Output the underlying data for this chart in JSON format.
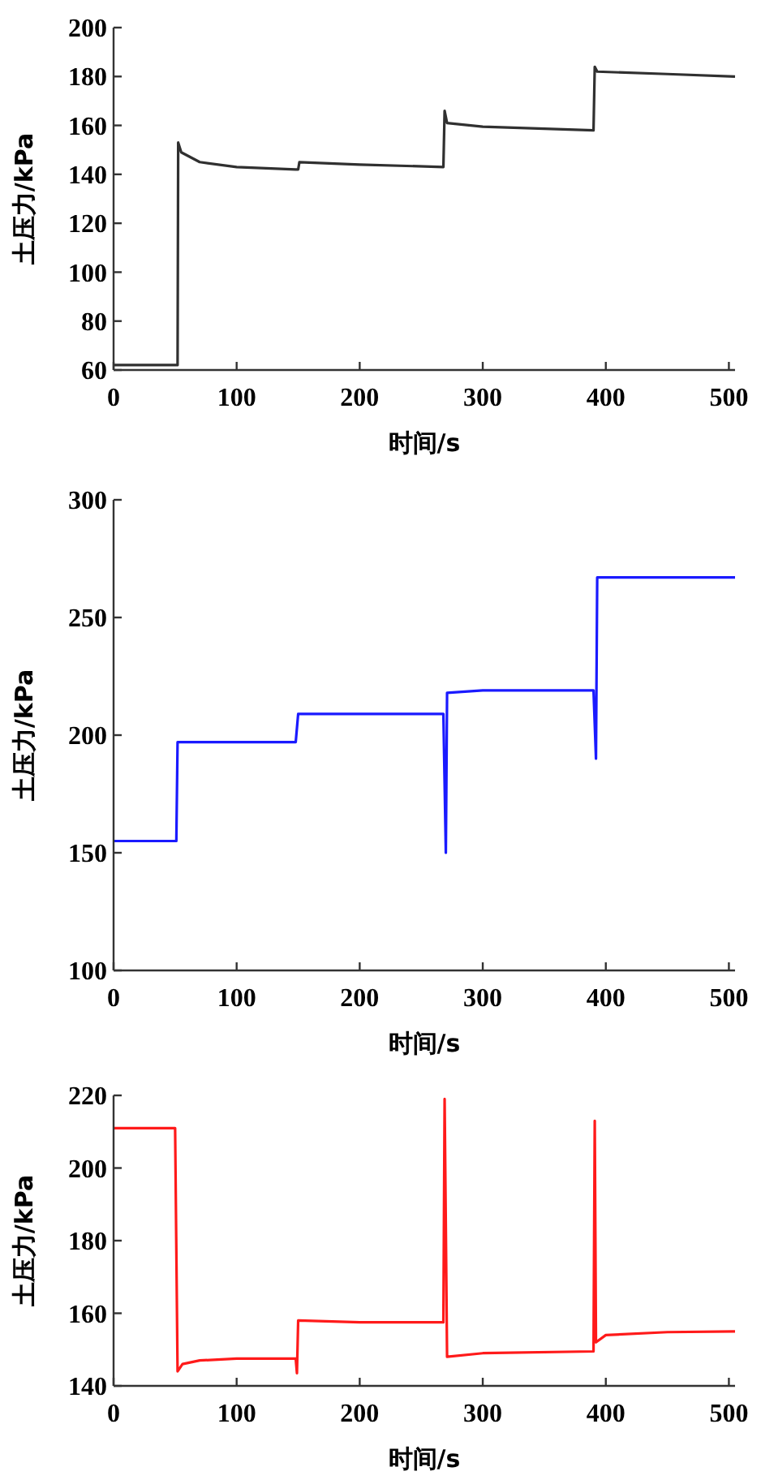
{
  "chart_data": [
    {
      "type": "line",
      "xlabel": "时间/s",
      "ylabel": "土压力/kPa",
      "xlim": [
        0,
        505
      ],
      "ylim": [
        60,
        200
      ],
      "xticks": [
        0,
        100,
        200,
        300,
        400,
        500
      ],
      "yticks": [
        60,
        80,
        100,
        120,
        140,
        160,
        180,
        200
      ],
      "grid": false,
      "series": [
        {
          "color": "#303030",
          "x": [
            0,
            52,
            52.5,
            55,
            70,
            100,
            148,
            150,
            151,
            200,
            268,
            269,
            271,
            300,
            390,
            391,
            393,
            450,
            505
          ],
          "values": [
            62,
            62,
            153,
            149,
            145,
            143,
            142,
            142,
            145,
            144,
            143,
            166,
            161,
            159.5,
            158,
            184,
            182,
            181,
            180
          ]
        }
      ]
    },
    {
      "type": "line",
      "xlabel": "时间/s",
      "ylabel": "土压力/kPa",
      "xlim": [
        0,
        505
      ],
      "ylim": [
        100,
        300
      ],
      "xticks": [
        0,
        100,
        200,
        300,
        400,
        500
      ],
      "yticks": [
        100,
        150,
        200,
        250,
        300
      ],
      "grid": false,
      "series": [
        {
          "color": "#1a1aff",
          "x": [
            0,
            51,
            52,
            148,
            150,
            268,
            270,
            271,
            300,
            390,
            392,
            393,
            505
          ],
          "values": [
            155,
            155,
            197,
            197,
            209,
            209,
            150,
            218,
            219,
            219,
            190,
            267,
            267
          ]
        }
      ]
    },
    {
      "type": "line",
      "xlabel": "时间/s",
      "ylabel": "土压力/kPa",
      "xlim": [
        0,
        505
      ],
      "ylim": [
        140,
        220
      ],
      "xticks": [
        0,
        100,
        200,
        300,
        400,
        500
      ],
      "yticks": [
        140,
        160,
        180,
        200,
        220
      ],
      "grid": false,
      "series": [
        {
          "color": "#ff1a1a",
          "x": [
            0,
            50,
            52,
            56,
            70,
            100,
            148,
            149,
            150,
            200,
            268,
            269,
            271,
            300,
            390,
            391,
            392,
            400,
            450,
            505
          ],
          "values": [
            211,
            211,
            144,
            146,
            147,
            147.5,
            147.5,
            143.5,
            158,
            157.5,
            157.5,
            219,
            148,
            149,
            149.5,
            213,
            152,
            154,
            154.8,
            155
          ]
        }
      ]
    }
  ]
}
